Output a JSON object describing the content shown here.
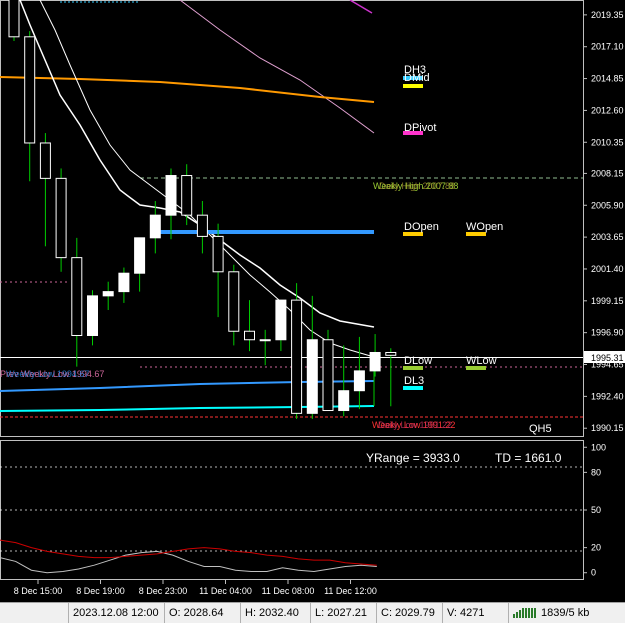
{
  "price_axis": {
    "ticks": [
      "2019.35",
      "2017.10",
      "2014.85",
      "2012.60",
      "2010.35",
      "2008.15",
      "2005.90",
      "2003.65",
      "2001.40",
      "1999.15",
      "1996.90",
      "1994.65",
      "1992.40",
      "1990.15"
    ],
    "current_price": "1995.31"
  },
  "time_axis": {
    "ticks": [
      "8 Dec 15:00",
      "8 Dec 19:00",
      "8 Dec 23:00",
      "11 Dec 04:00",
      "11 Dec 08:00",
      "11 Dec 12:00"
    ]
  },
  "level_labels": {
    "dh3": "DH3",
    "dmid": "DMid",
    "dpivot": "DPivot",
    "dopen": "DOpen",
    "wopen": "WOpen",
    "dlow": "DLow",
    "wlow": "WLow",
    "dl3": "DL3",
    "weekly_high": "Weekly High 2007.88",
    "daily_high": "Daily High 2007.88",
    "prev_low": "Prev Weekly Low 1994.67",
    "weekly_low_left": "Weekly Low 1994.67",
    "weekly_low_bottom": "Weekly Low 1991.22",
    "daily_low_bottom": "Daily Low 1991.22",
    "qh5": "QH5"
  },
  "indicator": {
    "yrange_text": "YRange = 3933.0",
    "td_text": "TD = 1661.0",
    "ticks": [
      "100",
      "80",
      "50",
      "20",
      "0"
    ]
  },
  "colors": {
    "background": "#000000",
    "up_candle": "#ffffff",
    "candle_wick": "#00cc00",
    "dh3": "#33ccff",
    "dmid": "#ffff00",
    "dpivot": "#ff33cc",
    "dopen": "#ffcc00",
    "wopen": "#ffcc00",
    "dlow": "#99cc33",
    "dl3": "#00ffff",
    "blue_level": "#3399ff",
    "orange_ma": "#ff9900",
    "ma_white": "#ffffff"
  },
  "status_bar": {
    "datetime": "2023.12.08 12:00",
    "open": "O: 2028.64",
    "high": "H: 2032.40",
    "low": "L: 2027.21",
    "close": "C: 2029.79",
    "volume": "V: 4271",
    "traffic": "1839/5 kb"
  },
  "chart_data": {
    "type": "candlestick",
    "x": [
      "8 Dec 13:00",
      "8 Dec 14:00",
      "8 Dec 15:00",
      "8 Dec 16:00",
      "8 Dec 17:00",
      "8 Dec 18:00",
      "8 Dec 19:00",
      "8 Dec 20:00",
      "8 Dec 21:00",
      "8 Dec 22:00",
      "8 Dec 23:00",
      "11 Dec 00:00",
      "11 Dec 01:00",
      "11 Dec 02:00",
      "11 Dec 03:00",
      "11 Dec 04:00",
      "11 Dec 05:00",
      "11 Dec 06:00",
      "11 Dec 07:00",
      "11 Dec 08:00",
      "11 Dec 09:00",
      "11 Dec 10:00",
      "11 Dec 11:00",
      "11 Dec 12:00",
      "11 Dec 13:00"
    ],
    "open": [
      2021.0,
      2017.8,
      2010.3,
      2007.8,
      2002.2,
      1996.7,
      1999.5,
      1999.8,
      2001.1,
      2003.6,
      2005.2,
      2008.0,
      2005.2,
      2003.7,
      2001.2,
      1997.0,
      1996.4,
      1996.4,
      1999.2,
      1991.2,
      1996.4,
      1991.4,
      1992.8,
      1994.2,
      1995.5
    ],
    "high": [
      2021.5,
      2018.2,
      2011.0,
      2008.5,
      2003.6,
      1999.9,
      2000.5,
      2001.5,
      2003.5,
      2006.2,
      2008.5,
      2008.8,
      2006.2,
      2004.6,
      2001.7,
      1999.2,
      1997.1,
      1999.2,
      2000.4,
      1999.5,
      1997.1,
      1996.0,
      1996.6,
      1996.8,
      1995.8
    ],
    "low": [
      2017.5,
      2007.6,
      2003.0,
      2001.2,
      1994.5,
      1996.0,
      1998.5,
      1999.0,
      1999.8,
      2002.5,
      2003.5,
      2004.5,
      2002.5,
      1998.0,
      1996.0,
      1995.6,
      1994.6,
      1995.6,
      1990.8,
      1990.8,
      1991.5,
      1991.0,
      1991.5,
      1993.8,
      1991.7
    ],
    "close": [
      2017.8,
      2010.3,
      2007.8,
      2002.2,
      1996.7,
      1999.5,
      1999.8,
      2001.1,
      2003.6,
      2005.2,
      2008.0,
      2005.2,
      2003.7,
      2001.2,
      1997.0,
      1996.4,
      1996.4,
      1999.2,
      1991.2,
      1996.4,
      1991.4,
      1992.8,
      1994.2,
      1995.5,
      1995.3
    ],
    "ylim": [
      1989.6,
      2020.4
    ],
    "levels": {
      "dh3": 2014.7,
      "dmid": 2014.5,
      "dpivot": 2010.9,
      "weekly_high": 2007.88,
      "dopen": 2003.8,
      "wopen": 2003.8,
      "dlow": 1994.7,
      "wlow": 1994.7,
      "weekly_low_left": 1994.67,
      "dl3": 1993.5,
      "daily_low": 1991.22,
      "weekly_low": 1991.22
    },
    "indicator": {
      "ylim": [
        -5,
        105
      ],
      "series": [
        {
          "values": [
            12,
            9,
            2,
            0,
            1,
            3,
            6,
            10,
            14,
            16,
            17,
            14,
            9,
            5,
            5,
            2,
            1,
            1,
            4,
            2,
            1,
            3,
            5,
            6,
            5
          ]
        },
        {
          "values": [
            26,
            24,
            20,
            17,
            15,
            13,
            12,
            12,
            13,
            14,
            15,
            17,
            19,
            20,
            19,
            17,
            16,
            14,
            13,
            11,
            10,
            10,
            8,
            7,
            6
          ]
        }
      ]
    }
  }
}
